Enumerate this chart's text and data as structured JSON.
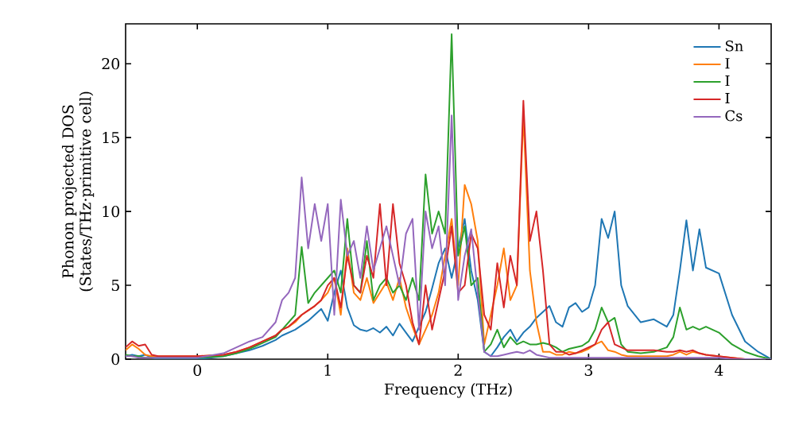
{
  "chart_data": {
    "type": "line",
    "xlabel": "Frequency (THz)",
    "ylabel": "Phonon projected DOS (States/THz·primitive cell)",
    "xlim": [
      -0.55,
      4.4
    ],
    "ylim": [
      0,
      22.7
    ],
    "xticks": [
      0,
      1,
      2,
      3,
      4
    ],
    "yticks": [
      0,
      5,
      10,
      15,
      20
    ],
    "legend": "top right",
    "grid": false,
    "marker": "none",
    "line_style": "solid",
    "x": [
      -0.55,
      -0.5,
      -0.45,
      -0.4,
      -0.35,
      -0.3,
      -0.2,
      0.0,
      0.2,
      0.3,
      0.4,
      0.5,
      0.6,
      0.65,
      0.7,
      0.75,
      0.8,
      0.85,
      0.9,
      0.95,
      1.0,
      1.05,
      1.1,
      1.15,
      1.2,
      1.25,
      1.3,
      1.35,
      1.4,
      1.45,
      1.5,
      1.55,
      1.6,
      1.65,
      1.7,
      1.75,
      1.8,
      1.85,
      1.9,
      1.95,
      2.0,
      2.05,
      2.1,
      2.15,
      2.2,
      2.25,
      2.3,
      2.35,
      2.4,
      2.45,
      2.5,
      2.55,
      2.6,
      2.65,
      2.7,
      2.75,
      2.8,
      2.85,
      2.9,
      2.95,
      3.0,
      3.05,
      3.1,
      3.15,
      3.2,
      3.25,
      3.3,
      3.4,
      3.5,
      3.6,
      3.65,
      3.7,
      3.75,
      3.8,
      3.85,
      3.9,
      4.0,
      4.1,
      4.2,
      4.3,
      4.4
    ],
    "series": [
      {
        "name": "Sn",
        "color": "#1f77b4",
        "values": [
          0.2,
          0.3,
          0.2,
          0.3,
          0.1,
          0.0,
          0.0,
          0.0,
          0.2,
          0.4,
          0.6,
          0.9,
          1.3,
          1.6,
          1.8,
          2.0,
          2.3,
          2.6,
          3.0,
          3.4,
          2.6,
          4.5,
          6.0,
          3.5,
          2.3,
          2.0,
          1.9,
          2.1,
          1.8,
          2.2,
          1.6,
          2.4,
          1.8,
          1.2,
          2.2,
          3.2,
          4.8,
          6.5,
          7.5,
          5.5,
          7.5,
          9.5,
          6.0,
          4.0,
          0.5,
          0.2,
          0.8,
          1.5,
          2.0,
          1.2,
          1.8,
          2.2,
          2.8,
          3.2,
          3.6,
          2.5,
          2.2,
          3.5,
          3.8,
          3.2,
          3.5,
          5.0,
          9.5,
          8.2,
          10.0,
          5.0,
          3.6,
          2.5,
          2.7,
          2.2,
          3.0,
          6.0,
          9.4,
          6.0,
          8.8,
          6.2,
          5.8,
          3.0,
          1.2,
          0.5,
          0.0
        ]
      },
      {
        "name": "I",
        "color": "#ff7f0e",
        "values": [
          0.6,
          1.0,
          0.7,
          0.3,
          0.2,
          0.2,
          0.2,
          0.2,
          0.3,
          0.5,
          0.8,
          1.2,
          1.6,
          2.0,
          2.2,
          2.5,
          3.0,
          3.3,
          3.6,
          4.0,
          4.5,
          5.5,
          3.0,
          7.5,
          4.5,
          4.0,
          5.5,
          3.8,
          4.5,
          5.2,
          4.0,
          5.5,
          3.5,
          2.2,
          1.0,
          2.0,
          3.0,
          4.5,
          7.0,
          9.5,
          5.0,
          11.8,
          10.5,
          8.0,
          1.0,
          3.0,
          5.0,
          7.5,
          4.0,
          5.0,
          16.5,
          6.0,
          2.5,
          0.5,
          0.5,
          0.3,
          0.3,
          0.5,
          0.4,
          0.5,
          0.7,
          1.0,
          1.2,
          0.6,
          0.5,
          0.3,
          0.2,
          0.2,
          0.2,
          0.2,
          0.3,
          0.5,
          0.3,
          0.5,
          0.4,
          0.3,
          0.2,
          0.1,
          0.0,
          0.0,
          0.0
        ]
      },
      {
        "name": "I",
        "color": "#2ca02c",
        "values": [
          0.3,
          0.2,
          0.2,
          0.1,
          0.1,
          0.1,
          0.1,
          0.1,
          0.2,
          0.4,
          0.7,
          1.1,
          1.5,
          2.0,
          2.5,
          3.0,
          7.6,
          3.8,
          4.5,
          5.0,
          5.5,
          6.0,
          4.5,
          9.5,
          5.0,
          4.5,
          8.0,
          4.0,
          5.0,
          5.5,
          4.5,
          5.0,
          4.0,
          5.5,
          4.0,
          12.5,
          8.5,
          10.0,
          8.5,
          22.0,
          7.0,
          9.0,
          5.0,
          5.5,
          0.5,
          1.0,
          2.0,
          0.8,
          1.5,
          1.0,
          1.2,
          1.0,
          1.0,
          1.1,
          1.0,
          0.8,
          0.5,
          0.7,
          0.8,
          0.9,
          1.2,
          2.0,
          3.5,
          2.5,
          2.8,
          1.0,
          0.5,
          0.4,
          0.5,
          0.8,
          1.5,
          3.5,
          2.0,
          2.2,
          2.0,
          2.2,
          1.8,
          1.0,
          0.5,
          0.2,
          0.0
        ]
      },
      {
        "name": "I",
        "color": "#d62728",
        "values": [
          0.8,
          1.2,
          0.9,
          1.0,
          0.3,
          0.2,
          0.2,
          0.2,
          0.3,
          0.5,
          0.8,
          1.2,
          1.6,
          2.0,
          2.2,
          2.6,
          3.0,
          3.3,
          3.6,
          4.0,
          5.0,
          5.5,
          3.5,
          7.0,
          5.0,
          4.5,
          7.0,
          5.5,
          10.5,
          5.0,
          10.5,
          6.5,
          5.0,
          2.5,
          1.0,
          5.0,
          2.0,
          4.0,
          6.0,
          9.0,
          4.5,
          5.0,
          8.5,
          7.5,
          3.0,
          2.0,
          6.5,
          3.5,
          7.0,
          5.0,
          17.5,
          8.0,
          10.0,
          6.0,
          1.0,
          0.5,
          0.5,
          0.3,
          0.4,
          0.6,
          0.8,
          1.0,
          2.0,
          2.5,
          1.0,
          0.8,
          0.6,
          0.6,
          0.6,
          0.5,
          0.5,
          0.6,
          0.5,
          0.6,
          0.4,
          0.3,
          0.2,
          0.1,
          0.0,
          0.0,
          0.0
        ]
      },
      {
        "name": "Cs",
        "color": "#9467bd",
        "values": [
          0.2,
          0.2,
          0.1,
          0.1,
          0.1,
          0.1,
          0.1,
          0.1,
          0.4,
          0.8,
          1.2,
          1.5,
          2.5,
          4.0,
          4.5,
          5.5,
          12.3,
          7.5,
          10.5,
          8.0,
          10.5,
          3.0,
          10.8,
          7.0,
          8.0,
          5.5,
          9.0,
          6.0,
          7.5,
          9.0,
          7.0,
          5.0,
          8.5,
          9.5,
          2.0,
          10.0,
          7.5,
          9.0,
          5.0,
          16.5,
          4.0,
          7.0,
          8.8,
          4.5,
          0.5,
          0.2,
          0.2,
          0.3,
          0.4,
          0.5,
          0.4,
          0.6,
          0.3,
          0.2,
          0.1,
          0.1,
          0.1,
          0.1,
          0.1,
          0.1,
          0.1,
          0.1,
          0.1,
          0.1,
          0.1,
          0.1,
          0.1,
          0.1,
          0.1,
          0.1,
          0.1,
          0.1,
          0.1,
          0.1,
          0.1,
          0.1,
          0.1,
          0.0,
          0.0,
          0.0,
          0.0
        ]
      }
    ]
  }
}
